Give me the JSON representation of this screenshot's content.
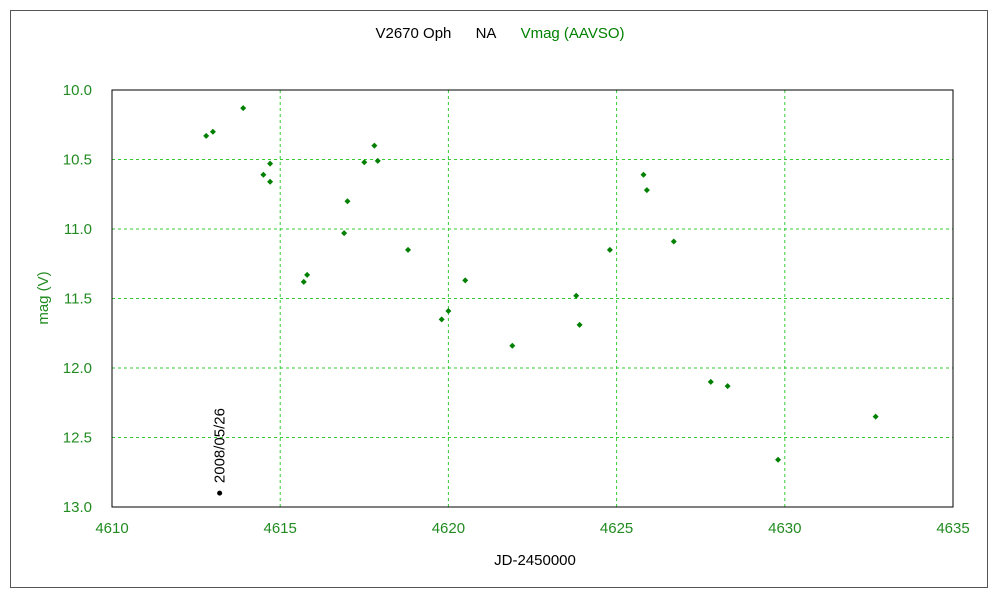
{
  "chart_data": {
    "type": "scatter",
    "title_parts": {
      "object": "V2670 Oph",
      "note": "NA",
      "series_label": "Vmag (AAVSO)"
    },
    "xlabel": "JD-2450000",
    "ylabel": "mag (V)",
    "xlim": [
      4610,
      4635
    ],
    "ylim": [
      10.0,
      13.0
    ],
    "y_inverted": true,
    "grid": true,
    "x_ticks": [
      "4610",
      "4615",
      "4620",
      "4625",
      "4630",
      "4635"
    ],
    "y_ticks": [
      "10.0",
      "10.5",
      "11.0",
      "11.5",
      "12.0",
      "12.5",
      "13.0"
    ],
    "colors": {
      "series": "#008000",
      "grid": "#33cc33",
      "axis_text": "#228b22",
      "title_text": "#000000",
      "marker_text": "#000000"
    },
    "series": [
      {
        "name": "Vmag (AAVSO)",
        "points": [
          {
            "x": 4612.8,
            "y": 10.33
          },
          {
            "x": 4613.0,
            "y": 10.3
          },
          {
            "x": 4613.9,
            "y": 10.13
          },
          {
            "x": 4614.5,
            "y": 10.61
          },
          {
            "x": 4614.7,
            "y": 10.53
          },
          {
            "x": 4614.7,
            "y": 10.66
          },
          {
            "x": 4615.7,
            "y": 11.38
          },
          {
            "x": 4615.8,
            "y": 11.33
          },
          {
            "x": 4616.9,
            "y": 11.03
          },
          {
            "x": 4617.0,
            "y": 10.8
          },
          {
            "x": 4617.5,
            "y": 10.52
          },
          {
            "x": 4617.8,
            "y": 10.4
          },
          {
            "x": 4617.9,
            "y": 10.51
          },
          {
            "x": 4618.8,
            "y": 11.15
          },
          {
            "x": 4619.8,
            "y": 11.65
          },
          {
            "x": 4620.0,
            "y": 11.59
          },
          {
            "x": 4620.5,
            "y": 11.37
          },
          {
            "x": 4621.9,
            "y": 11.84
          },
          {
            "x": 4623.8,
            "y": 11.48
          },
          {
            "x": 4623.9,
            "y": 11.69
          },
          {
            "x": 4624.8,
            "y": 11.15
          },
          {
            "x": 4625.8,
            "y": 10.61
          },
          {
            "x": 4625.9,
            "y": 10.72
          },
          {
            "x": 4626.7,
            "y": 11.09
          },
          {
            "x": 4627.8,
            "y": 12.1
          },
          {
            "x": 4628.3,
            "y": 12.13
          },
          {
            "x": 4629.8,
            "y": 12.66
          },
          {
            "x": 4632.7,
            "y": 12.35
          }
        ]
      }
    ],
    "annotation": {
      "text": "2008/05/26",
      "x": 4613.2,
      "y": 12.9
    }
  }
}
